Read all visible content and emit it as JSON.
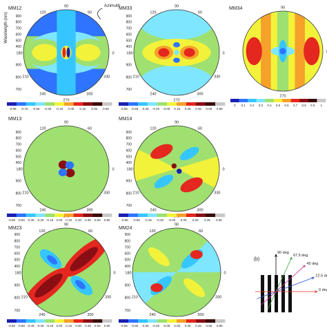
{
  "chart_data": [
    {
      "type": "heatmap",
      "title": "MM12",
      "ylabel": "Wavelength (nm)",
      "azimuth_label": "Azimuth",
      "angle_ticks": [
        "90",
        "120",
        "60",
        "180",
        "0",
        "210",
        "330",
        "240",
        "270",
        "300"
      ],
      "radial_ticks": [
        "400",
        "500",
        "600",
        "700",
        "800",
        "900"
      ],
      "colorbar": [
        "-0.95",
        "-0.75",
        "-0.55",
        "-0.35",
        "-0.15",
        "0.05",
        "0.15",
        "0.35",
        "0.55"
      ],
      "colors": [
        "#1a1fb0",
        "#2f74ff",
        "#36c6ff",
        "#7fe6ff",
        "#9fe070",
        "#f2f23a",
        "#f5a12a",
        "#e4271f",
        "#8a0e14",
        "#3a0a0a",
        "#c8c8c8"
      ]
    },
    {
      "type": "heatmap",
      "title": "MM33",
      "angle_ticks": [
        "90",
        "120",
        "60",
        "180",
        "0",
        "210",
        "330",
        "240",
        "270",
        "300"
      ],
      "radial_ticks": [
        "400",
        "500",
        "600",
        "700",
        "800",
        "900"
      ],
      "colorbar": [
        "-0.85",
        "-0.65",
        "-0.45",
        "-0.25",
        "-0.05",
        "0.15",
        "0.25",
        "0.45",
        "0.65",
        "0.85"
      ],
      "colors": [
        "#1a1fb0",
        "#2f74ff",
        "#36c6ff",
        "#7fe6ff",
        "#9fe070",
        "#f2f23a",
        "#f5a12a",
        "#e4271f",
        "#8a0e14",
        "#3a0a0a",
        "#c8c8c8"
      ]
    },
    {
      "type": "heatmap",
      "title": "MM34",
      "angle_ticks": [
        "90",
        "0",
        "270"
      ],
      "colorbar": [
        "0",
        "0.1",
        "0.2",
        "0.3",
        "0.4",
        "0.5",
        "0.6",
        "0.7",
        "0.8",
        "0.9",
        "1"
      ],
      "colors": [
        "#1a1fb0",
        "#2f74ff",
        "#36c6ff",
        "#7fe6ff",
        "#9fe070",
        "#f2f23a",
        "#f5a12a",
        "#e4271f",
        "#8a0e14",
        "#3a0a0a",
        "#c8c8c8"
      ]
    },
    {
      "type": "heatmap",
      "title": "MM13",
      "angle_ticks": [
        "90",
        "120",
        "60",
        "180",
        "0",
        "210",
        "330",
        "240",
        "270",
        "300"
      ],
      "radial_ticks": [
        "400",
        "500",
        "600",
        "700",
        "800",
        "900"
      ],
      "colorbar": [
        "-0.80",
        "-0.60",
        "-0.45",
        "-0.30",
        "-0.15",
        "0.00",
        "0.15",
        "0.30",
        "0.45",
        "0.60",
        "0.80"
      ],
      "colors": [
        "#1a1fb0",
        "#2f74ff",
        "#36c6ff",
        "#7fe6ff",
        "#9fe070",
        "#f2f23a",
        "#f5a12a",
        "#e4271f",
        "#8a0e14",
        "#3a0a0a",
        "#c8c8c8"
      ]
    },
    {
      "type": "heatmap",
      "title": "MM14",
      "angle_ticks": [
        "90",
        "120",
        "60",
        "180",
        "0",
        "210",
        "330",
        "240",
        "270",
        "300"
      ],
      "radial_ticks": [
        "400",
        "500",
        "600",
        "700",
        "800",
        "900"
      ],
      "colorbar": [
        "-0.85",
        "-0.65",
        "-0.45",
        "-0.25",
        "-0.05",
        "0.05",
        "0.25",
        "0.45",
        "0.65"
      ],
      "colors": [
        "#1a1fb0",
        "#2f74ff",
        "#36c6ff",
        "#7fe6ff",
        "#9fe070",
        "#f2f23a",
        "#f5a12a",
        "#e4271f",
        "#8a0e14",
        "#3a0a0a",
        "#c8c8c8"
      ]
    },
    {
      "type": "heatmap",
      "title": "MM23",
      "angle_ticks": [
        "90",
        "120",
        "60",
        "180",
        "0",
        "210",
        "330",
        "240",
        "270",
        "300"
      ],
      "radial_ticks": [
        "400",
        "500",
        "600",
        "700",
        "800",
        "900"
      ],
      "colorbar": [
        "-0.80",
        "-0.60",
        "-0.45",
        "-0.30",
        "-0.15",
        "0.00",
        "0.15",
        "0.30",
        "0.45",
        "0.60",
        "0.80"
      ],
      "colors": [
        "#1a1fb0",
        "#2f74ff",
        "#36c6ff",
        "#7fe6ff",
        "#9fe070",
        "#f2f23a",
        "#f5a12a",
        "#e4271f",
        "#8a0e14",
        "#3a0a0a",
        "#c8c8c8"
      ]
    },
    {
      "type": "heatmap",
      "title": "MM24",
      "angle_ticks": [
        "90",
        "120",
        "60",
        "180",
        "0",
        "210",
        "330",
        "240",
        "270",
        "300"
      ],
      "radial_ticks": [
        "400",
        "500",
        "600",
        "700",
        "800",
        "900"
      ],
      "colorbar": [
        "-0.85",
        "-0.65",
        "-0.45",
        "-0.25",
        "-0.05",
        "0.05",
        "0.25",
        "0.45",
        "0.65",
        "0.85"
      ],
      "colors": [
        "#1a1fb0",
        "#2f74ff",
        "#36c6ff",
        "#7fe6ff",
        "#9fe070",
        "#f2f23a",
        "#f5a12a",
        "#e4271f",
        "#8a0e14",
        "#3a0a0a",
        "#c8c8c8"
      ]
    }
  ],
  "schematic": {
    "panel_label": "(b)",
    "rays": [
      {
        "label": "90 deg",
        "angle": 90,
        "color": "#000000"
      },
      {
        "label": "67.5 deg",
        "angle": 67.5,
        "color": "#3aa63a"
      },
      {
        "label": "45 deg",
        "angle": 45,
        "color": "#c0359a"
      },
      {
        "label": "22.5 deg",
        "angle": 22.5,
        "color": "#2f4fd0"
      },
      {
        "label": "0 deg",
        "angle": 0,
        "color": "#e4271f"
      }
    ]
  }
}
